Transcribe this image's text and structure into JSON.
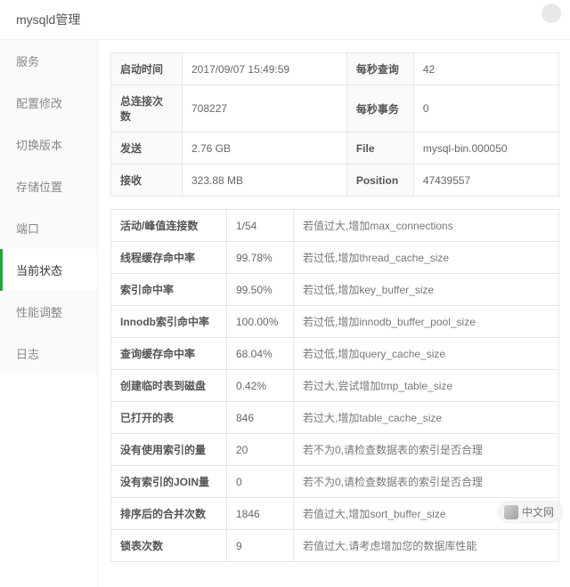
{
  "header": {
    "title": "mysqld管理"
  },
  "sidebar": {
    "items": [
      {
        "label": "服务"
      },
      {
        "label": "配置修改"
      },
      {
        "label": "切换版本"
      },
      {
        "label": "存储位置"
      },
      {
        "label": "端口"
      },
      {
        "label": "当前状态"
      },
      {
        "label": "性能调整"
      },
      {
        "label": "日志"
      }
    ],
    "active_index": 5
  },
  "summary": {
    "rows": [
      {
        "k1": "启动时间",
        "v1": "2017/09/07 15:49:59",
        "k2": "每秒查询",
        "v2": "42"
      },
      {
        "k1": "总连接次数",
        "v1": "708227",
        "k2": "每秒事务",
        "v2": "0"
      },
      {
        "k1": "发送",
        "v1": "2.76 GB",
        "k2": "File",
        "v2": "mysql-bin.000050"
      },
      {
        "k1": "接收",
        "v1": "323.88 MB",
        "k2": "Position",
        "v2": "47439557"
      }
    ]
  },
  "metrics": {
    "rows": [
      {
        "k": "活动/峰值连接数",
        "v": "1/54",
        "d": "若值过大,增加max_connections"
      },
      {
        "k": "线程缓存命中率",
        "v": "99.78%",
        "d": "若过低,增加thread_cache_size"
      },
      {
        "k": "索引命中率",
        "v": "99.50%",
        "d": "若过低,增加key_buffer_size"
      },
      {
        "k": "Innodb索引命中率",
        "v": "100.00%",
        "d": "若过低,增加innodb_buffer_pool_size"
      },
      {
        "k": "查询缓存命中率",
        "v": "68.04%",
        "d": "若过低,增加query_cache_size"
      },
      {
        "k": "创建临时表到磁盘",
        "v": "0.42%",
        "d": "若过大,尝试增加tmp_table_size"
      },
      {
        "k": "已打开的表",
        "v": "846",
        "d": "若过大,增加table_cache_size"
      },
      {
        "k": "没有使用索引的量",
        "v": "20",
        "d": "若不为0,请检查数据表的索引是否合理"
      },
      {
        "k": "没有索引的JOIN量",
        "v": "0",
        "d": "若不为0,请检查数据表的索引是否合理"
      },
      {
        "k": "排序后的合并次数",
        "v": "1846",
        "d": "若值过大,增加sort_buffer_size"
      },
      {
        "k": "锁表次数",
        "v": "9",
        "d": "若值过大,请考虑增加您的数据库性能"
      }
    ]
  },
  "footer": {
    "label": "中文网"
  }
}
